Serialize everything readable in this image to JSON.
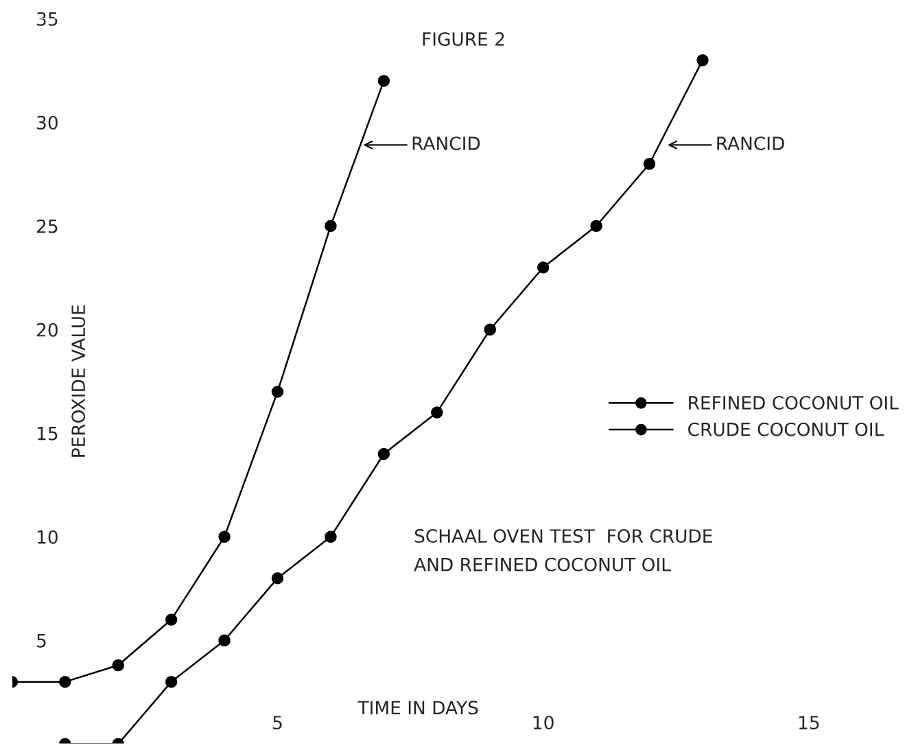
{
  "chart_data": {
    "type": "line",
    "title": "FIGURE 2",
    "xlabel": "TIME IN DAYS",
    "ylabel": "PEROXIDE VALUE",
    "xlim": [
      0,
      17
    ],
    "ylim": [
      0,
      35
    ],
    "xticks": [
      5,
      10,
      15
    ],
    "yticks": [
      5,
      10,
      15,
      20,
      25,
      30,
      35
    ],
    "grid": false,
    "legend": "right",
    "marker": "circle",
    "line_style": "solid",
    "series": [
      {
        "name": "REFINED COCONUT OIL",
        "color": "#000000",
        "x": [
          0,
          1,
          2,
          3,
          4,
          5,
          6,
          7
        ],
        "values": [
          3,
          3,
          3.8,
          6,
          10,
          17,
          25,
          32
        ]
      },
      {
        "name": "CRUDE COCONUT OIL",
        "color": "#000000",
        "x": [
          1,
          2,
          3,
          4,
          5,
          6,
          7,
          8,
          9,
          10,
          11,
          12,
          13
        ],
        "values": [
          0,
          0,
          3,
          5,
          8,
          10,
          14,
          16,
          20,
          23,
          25,
          28,
          33
        ]
      }
    ],
    "annotations": [
      "RANCID",
      "RANCID",
      "SCHAAL OVEN TEST  FOR CRUDE\nAND REFINED COCONUT OIL"
    ]
  }
}
